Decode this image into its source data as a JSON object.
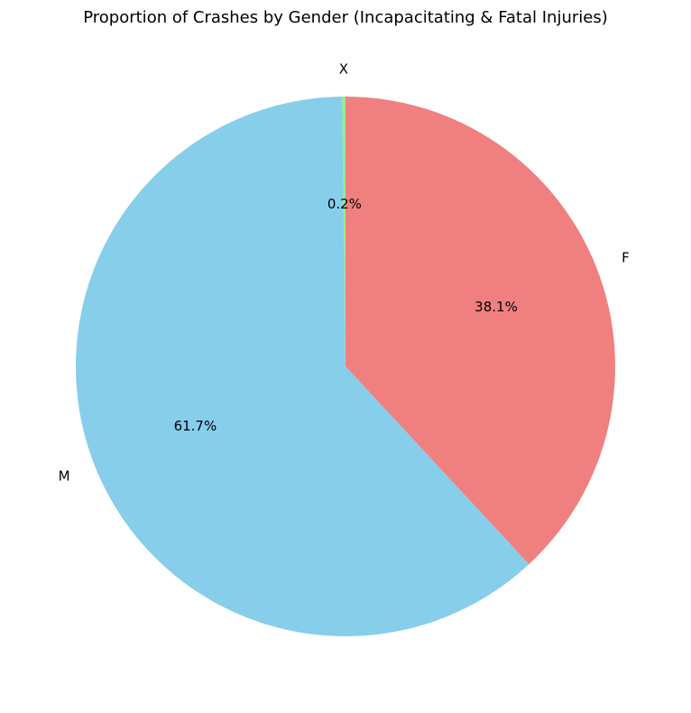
{
  "chart_data": {
    "type": "pie",
    "title": "Proportion of Crashes by Gender (Incapacitating & Fatal Injuries)",
    "slices": [
      {
        "label": "F",
        "value": 38.1,
        "pct_label": "38.1%",
        "color": "#f08080"
      },
      {
        "label": "M",
        "value": 61.7,
        "pct_label": "61.7%",
        "color": "#87ceeb"
      },
      {
        "label": "X",
        "value": 0.2,
        "pct_label": "0.2%",
        "color": "#90ee90"
      }
    ],
    "start_angle_deg": 90,
    "direction": "clockwise",
    "legend": "none"
  }
}
